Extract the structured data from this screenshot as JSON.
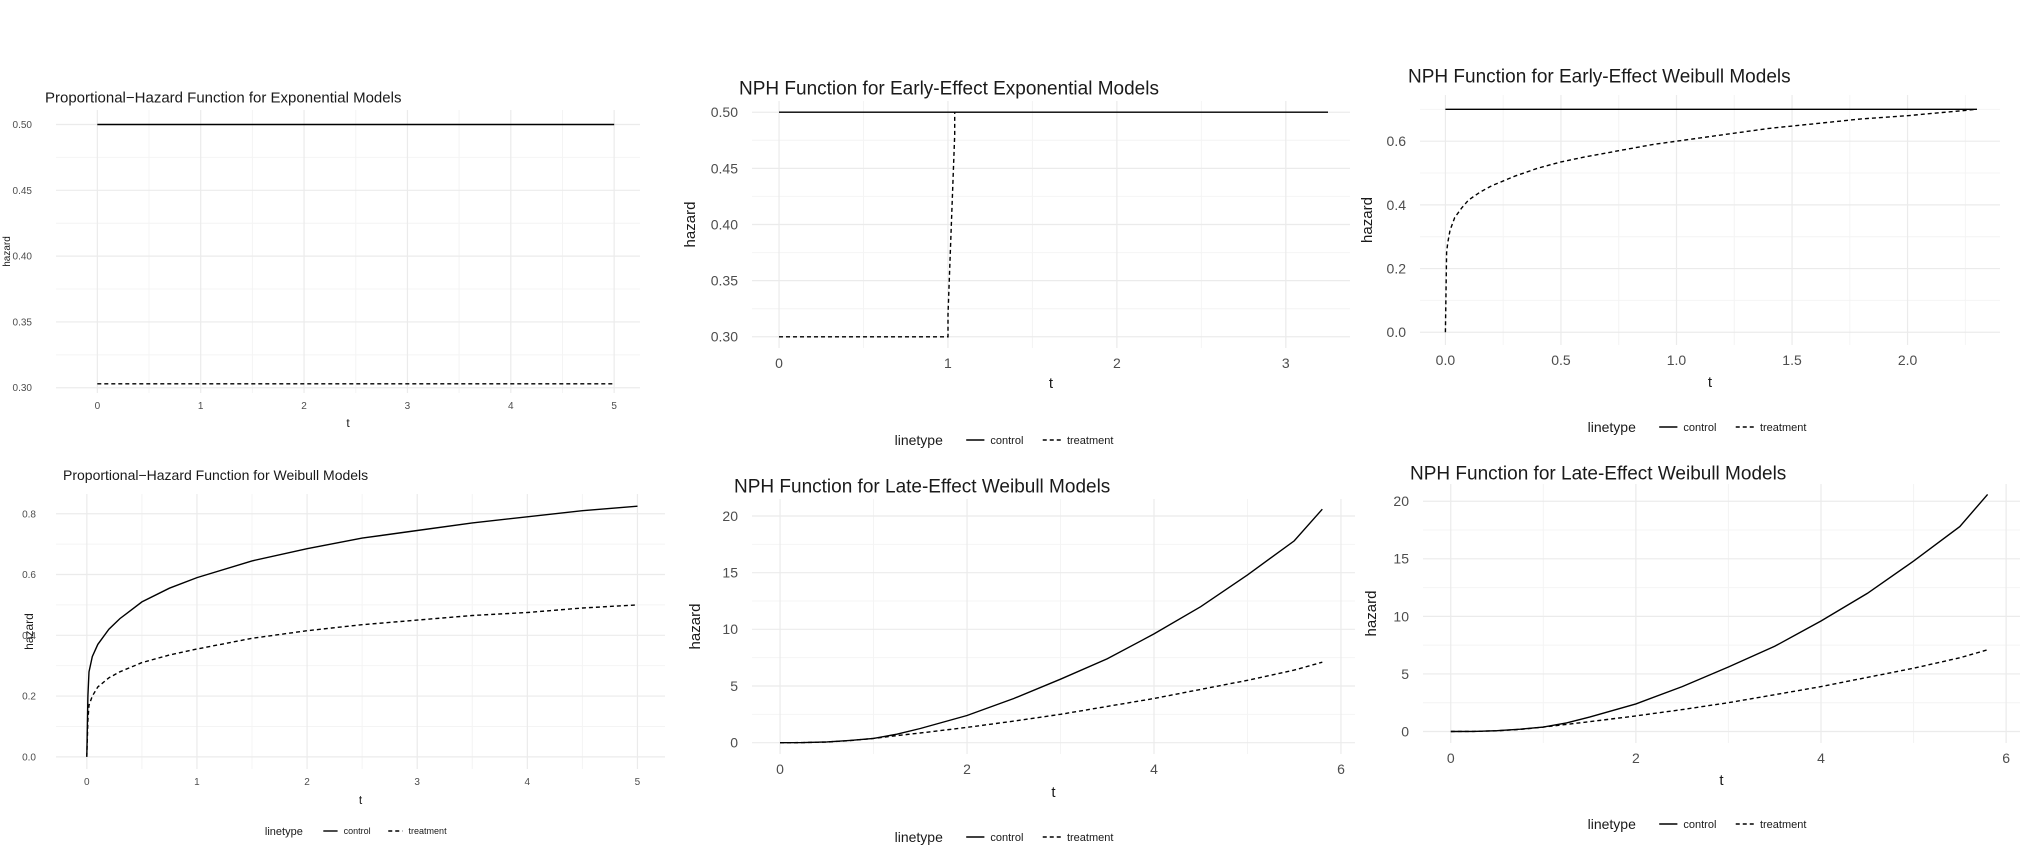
{
  "colors": {
    "line": "#000000",
    "grid_major": "#ebebeb",
    "grid_minor": "#f4f4f4",
    "tick_text": "#4d4d4d",
    "text": "#1a1a1a"
  },
  "chart_data": [
    {
      "type": "line",
      "title": "Proportional−Hazard Function for Exponential Models",
      "xlabel": "t",
      "ylabel": "hazard",
      "xlim": [
        -0.4,
        5.25
      ],
      "ylim": [
        0.296,
        0.511
      ],
      "xticks": [
        0,
        1,
        2,
        3,
        4,
        5
      ],
      "xtick_labels": [
        "0",
        "1",
        "2",
        "3",
        "4",
        "5"
      ],
      "yticks": [
        0.3,
        0.35,
        0.4,
        0.45,
        0.5
      ],
      "ytick_labels": [
        "0.30",
        "0.35",
        "0.40",
        "0.45",
        "0.50"
      ],
      "grid": true,
      "legend": "none",
      "series": [
        {
          "name": "control",
          "dash": "solid",
          "x": [
            0,
            5
          ],
          "y": [
            0.5,
            0.5
          ]
        },
        {
          "name": "treatment",
          "dash": "dashed",
          "x": [
            0,
            5
          ],
          "y": [
            0.303,
            0.303
          ]
        }
      ]
    },
    {
      "type": "line",
      "title": "NPH Function for Early-Effect Exponential Models",
      "xlabel": "t",
      "ylabel": "hazard",
      "xlim": [
        -0.16,
        3.38
      ],
      "ylim": [
        0.29,
        0.51
      ],
      "xticks": [
        0,
        1,
        2,
        3
      ],
      "xtick_labels": [
        "0",
        "1",
        "2",
        "3"
      ],
      "yticks": [
        0.3,
        0.35,
        0.4,
        0.45,
        0.5
      ],
      "ytick_labels": [
        "0.30",
        "0.35",
        "0.40",
        "0.45",
        "0.50"
      ],
      "grid": true,
      "legend": "bottom",
      "series": [
        {
          "name": "control",
          "dash": "solid",
          "x": [
            0,
            3.25
          ],
          "y": [
            0.5,
            0.5
          ]
        },
        {
          "name": "treatment",
          "dash": "dashed",
          "x": [
            0,
            1.0,
            1.0,
            1.04,
            1.04
          ],
          "y": [
            0.3,
            0.3,
            0.32,
            0.48,
            0.5
          ]
        }
      ]
    },
    {
      "type": "line",
      "title": "NPH Function for Early-Effect Weibull Models",
      "xlabel": "t",
      "ylabel": "hazard",
      "xlim": [
        -0.11,
        2.4
      ],
      "ylim": [
        -0.04,
        0.745
      ],
      "xticks": [
        0,
        0.5,
        1,
        1.5,
        2
      ],
      "xtick_labels": [
        "0.0",
        "0.5",
        "1.0",
        "1.5",
        "2.0"
      ],
      "yticks": [
        0,
        0.2,
        0.4,
        0.6
      ],
      "ytick_labels": [
        "0.0",
        "0.2",
        "0.4",
        "0.6"
      ],
      "grid": true,
      "legend": "bottom",
      "series": [
        {
          "name": "control",
          "dash": "solid",
          "x": [
            0,
            2.3
          ],
          "y": [
            0.7,
            0.7
          ]
        },
        {
          "name": "treatment",
          "dash": "dashed",
          "x": [
            0.0,
            0.005,
            0.01,
            0.02,
            0.04,
            0.07,
            0.1,
            0.15,
            0.2,
            0.3,
            0.4,
            0.5,
            0.6,
            0.75,
            0.9,
            1.0,
            1.2,
            1.4,
            1.6,
            1.8,
            2.0,
            2.15,
            2.3
          ],
          "y": [
            0.0,
            0.25,
            0.28,
            0.32,
            0.36,
            0.39,
            0.415,
            0.44,
            0.46,
            0.49,
            0.515,
            0.535,
            0.55,
            0.57,
            0.59,
            0.6,
            0.62,
            0.64,
            0.655,
            0.67,
            0.68,
            0.69,
            0.7
          ]
        }
      ]
    },
    {
      "type": "line",
      "title": "Proportional−Hazard Function for Weibull Models",
      "xlabel": "t",
      "ylabel": "hazard",
      "xlim": [
        -0.28,
        5.25
      ],
      "ylim": [
        -0.04,
        0.865
      ],
      "xticks": [
        0,
        1,
        2,
        3,
        4,
        5
      ],
      "xtick_labels": [
        "0",
        "1",
        "2",
        "3",
        "4",
        "5"
      ],
      "yticks": [
        0,
        0.2,
        0.4,
        0.6,
        0.8
      ],
      "ytick_labels": [
        "0.0",
        "0.2",
        "0.4",
        "0.6",
        "0.8"
      ],
      "grid": true,
      "legend": "bottom",
      "series": [
        {
          "name": "control",
          "dash": "solid",
          "x": [
            0.0,
            0.01,
            0.02,
            0.05,
            0.1,
            0.2,
            0.3,
            0.5,
            0.75,
            1.0,
            1.5,
            2.0,
            2.5,
            3.0,
            3.5,
            4.0,
            4.5,
            5.0
          ],
          "y": [
            0.0,
            0.2,
            0.28,
            0.33,
            0.37,
            0.42,
            0.455,
            0.51,
            0.555,
            0.59,
            0.645,
            0.685,
            0.72,
            0.745,
            0.77,
            0.79,
            0.81,
            0.825
          ]
        },
        {
          "name": "treatment",
          "dash": "dashed",
          "x": [
            0.0,
            0.01,
            0.02,
            0.05,
            0.1,
            0.2,
            0.3,
            0.5,
            0.75,
            1.0,
            1.5,
            2.0,
            2.5,
            3.0,
            3.5,
            4.0,
            4.5,
            5.0
          ],
          "y": [
            0.0,
            0.12,
            0.17,
            0.2,
            0.23,
            0.26,
            0.28,
            0.31,
            0.335,
            0.355,
            0.39,
            0.415,
            0.435,
            0.45,
            0.465,
            0.475,
            0.49,
            0.5
          ]
        }
      ]
    },
    {
      "type": "line",
      "title": "NPH Function for Late-Effect Weibull Models",
      "xlabel": "t",
      "ylabel": "hazard",
      "xlim": [
        -0.3,
        6.15
      ],
      "ylim": [
        -1.0,
        21.5
      ],
      "xticks": [
        0,
        2,
        4,
        6
      ],
      "xtick_labels": [
        "0",
        "2",
        "4",
        "6"
      ],
      "yticks": [
        0,
        5,
        10,
        15,
        20
      ],
      "ytick_labels": [
        "0",
        "5",
        "10",
        "15",
        "20"
      ],
      "grid": true,
      "legend": "bottom",
      "series": [
        {
          "name": "control",
          "dash": "solid",
          "x": [
            0.0,
            0.25,
            0.5,
            0.75,
            1.0,
            1.25,
            1.5,
            2.0,
            2.5,
            3.0,
            3.5,
            4.0,
            4.5,
            5.0,
            5.5,
            5.8
          ],
          "y": [
            0.0,
            0.01,
            0.07,
            0.2,
            0.38,
            0.75,
            1.25,
            2.4,
            3.9,
            5.6,
            7.4,
            9.6,
            12.0,
            14.8,
            17.8,
            20.6
          ]
        },
        {
          "name": "treatment",
          "dash": "dashed",
          "x": [
            0.0,
            0.25,
            0.5,
            0.75,
            1.0,
            1.25,
            1.5,
            2.0,
            2.5,
            3.0,
            3.5,
            4.0,
            4.5,
            5.0,
            5.5,
            5.8
          ],
          "y": [
            0.0,
            0.01,
            0.06,
            0.18,
            0.38,
            0.62,
            0.85,
            1.35,
            1.9,
            2.5,
            3.2,
            3.9,
            4.7,
            5.5,
            6.4,
            7.1
          ]
        }
      ]
    },
    {
      "type": "line",
      "title": "NPH Function for Late-Effect Weibull Models",
      "xlabel": "t",
      "ylabel": "hazard",
      "xlim": [
        -0.3,
        6.15
      ],
      "ylim": [
        -1.0,
        21.5
      ],
      "xticks": [
        0,
        2,
        4,
        6
      ],
      "xtick_labels": [
        "0",
        "2",
        "4",
        "6"
      ],
      "yticks": [
        0,
        5,
        10,
        15,
        20
      ],
      "ytick_labels": [
        "0",
        "5",
        "10",
        "15",
        "20"
      ],
      "grid": true,
      "legend": "bottom",
      "series": [
        {
          "name": "control",
          "dash": "solid",
          "x": [
            0.0,
            0.25,
            0.5,
            0.75,
            1.0,
            1.25,
            1.5,
            2.0,
            2.5,
            3.0,
            3.5,
            4.0,
            4.5,
            5.0,
            5.5,
            5.8
          ],
          "y": [
            0.0,
            0.01,
            0.07,
            0.2,
            0.38,
            0.75,
            1.25,
            2.4,
            3.9,
            5.6,
            7.4,
            9.6,
            12.0,
            14.8,
            17.8,
            20.6
          ]
        },
        {
          "name": "treatment",
          "dash": "dashed",
          "x": [
            0.0,
            0.25,
            0.5,
            0.75,
            1.0,
            1.25,
            1.5,
            2.0,
            2.5,
            3.0,
            3.5,
            4.0,
            4.5,
            5.0,
            5.5,
            5.8
          ],
          "y": [
            0.0,
            0.01,
            0.06,
            0.18,
            0.38,
            0.62,
            0.85,
            1.35,
            1.9,
            2.5,
            3.2,
            3.9,
            4.7,
            5.5,
            6.4,
            7.1
          ]
        }
      ]
    }
  ],
  "legend": {
    "title": "linetype",
    "items": [
      "control",
      "treatment"
    ]
  }
}
